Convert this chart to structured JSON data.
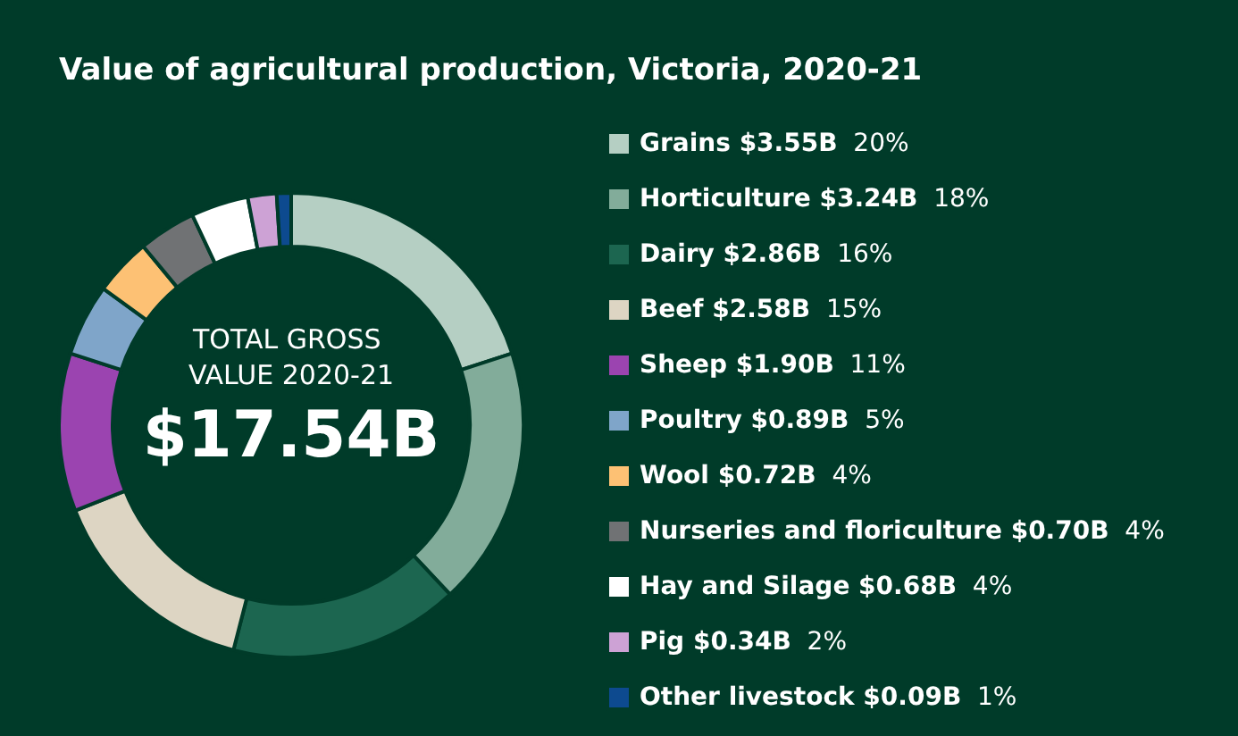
{
  "chart_data": {
    "type": "donut",
    "title": "Value of agricultural production, Victoria, 2020-21",
    "categories": [
      "Grains $3.55B",
      "Horticulture $3.24B",
      "Dairy $2.86B",
      "Beef $2.58B",
      "Sheep $1.90B",
      "Poultry $0.89B",
      "Wool $0.72B",
      "Nurseries and floriculture $0.70B",
      "Hay and Silage $0.68B",
      "Pig $0.34B",
      "Other livestock $0.09B"
    ],
    "values": [
      20,
      18,
      16,
      15,
      11,
      5,
      4,
      4,
      4,
      2,
      1
    ],
    "value_labels": [
      "20%",
      "18%",
      "16%",
      "15%",
      "11%",
      "5%",
      "4%",
      "4%",
      "4%",
      "2%",
      "1%"
    ],
    "colors": [
      "#b5cfc3",
      "#82ac9a",
      "#1c6650",
      "#ddd5c3",
      "#9b44b0",
      "#7fa5c9",
      "#fdc174",
      "#707274",
      "#ffffff",
      "#cda2d5",
      "#0d4a8f"
    ],
    "legend": "right",
    "annotations": [
      "TOTAL GROSS VALUE 2020-21",
      "$17.54B"
    ]
  }
}
